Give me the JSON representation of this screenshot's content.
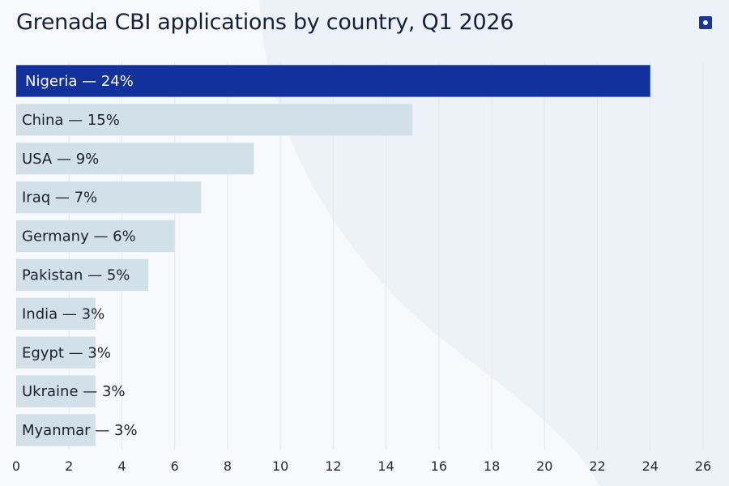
{
  "colors": {
    "background": "#f7f9fc",
    "bar_default": "#d2e1e7",
    "bar_highlight": "#12319a",
    "gridline": "#e4e8ee",
    "title": "#13213c",
    "label_dark": "#1a1f2b",
    "label_light": "#ffffff"
  },
  "icons": {
    "corner": "square-dot-icon"
  },
  "chart_data": {
    "type": "bar",
    "orientation": "horizontal",
    "title": "Grenada CBI applications by country, Q1 2026",
    "categories": [
      "Nigeria",
      "China",
      "USA",
      "Iraq",
      "Germany",
      "Pakistan",
      "India",
      "Egypt",
      "Ukraine",
      "Myanmar"
    ],
    "values": [
      24,
      15,
      9,
      7,
      6,
      5,
      3,
      3,
      3,
      3
    ],
    "labels": [
      "Nigeria — 24%",
      "China — 15%",
      "USA — 9%",
      "Iraq — 7%",
      "Germany — 6%",
      "Pakistan — 5%",
      "India — 3%",
      "Egypt — 3%",
      "Ukraine — 3%",
      "Myanmar — 3%"
    ],
    "highlight_index": 0,
    "xlim": [
      0,
      26
    ],
    "xticks": [
      0,
      2,
      4,
      6,
      8,
      10,
      12,
      14,
      16,
      18,
      20,
      22,
      24,
      26
    ],
    "grid": true,
    "xlabel": "",
    "ylabel": ""
  }
}
